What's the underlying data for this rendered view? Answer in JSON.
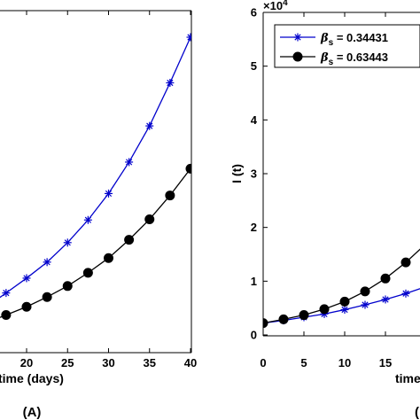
{
  "chart_data": [
    {
      "type": "line",
      "panel_label": "(A)",
      "xlabel": "time (days)",
      "xticks": [
        20,
        25,
        30,
        35,
        40
      ],
      "xlim": [
        15,
        40
      ],
      "ylim": [
        0,
        1
      ],
      "series": [
        {
          "color": "#0000cc",
          "marker": "asterisk",
          "x": [
            17.5,
            20,
            22.5,
            25,
            27.5,
            30,
            32.5,
            35,
            37.5,
            40
          ],
          "y": [
            0.187,
            0.234,
            0.285,
            0.347,
            0.419,
            0.503,
            0.603,
            0.718,
            0.855,
            1.0
          ]
        },
        {
          "color": "#000000",
          "marker": "circle",
          "x": [
            17.5,
            20,
            22.5,
            25,
            27.5,
            30,
            32.5,
            35,
            37.5,
            40
          ],
          "y": [
            0.117,
            0.143,
            0.174,
            0.209,
            0.251,
            0.298,
            0.356,
            0.421,
            0.497,
            0.582
          ]
        }
      ]
    },
    {
      "type": "line",
      "panel_label": "(B)",
      "xlabel": "time",
      "ylabel": "I (t)",
      "exponent_label": "×10",
      "exponent": "4",
      "xticks": [
        0,
        5,
        10,
        15
      ],
      "yticks": [
        0,
        1,
        2,
        3,
        4,
        5,
        6
      ],
      "xlim": [
        0,
        22
      ],
      "ylim": [
        0,
        6
      ],
      "legend_position": "top-left",
      "series": [
        {
          "name_symbol": "β",
          "name_sub": "s",
          "name_value": " = 0.34431",
          "color": "#0000cc",
          "marker": "asterisk",
          "x": [
            0,
            2.5,
            5,
            7.5,
            10,
            12.5,
            15,
            17.5,
            20
          ],
          "y": [
            0.22,
            0.27,
            0.33,
            0.39,
            0.47,
            0.56,
            0.66,
            0.77,
            0.9
          ]
        },
        {
          "name_symbol": "β",
          "name_sub": "s",
          "name_value": " = 0.63443",
          "color": "#000000",
          "marker": "circle",
          "x": [
            0,
            2.5,
            5,
            7.5,
            10,
            12.5,
            15,
            17.5,
            20
          ],
          "y": [
            0.22,
            0.29,
            0.37,
            0.48,
            0.62,
            0.81,
            1.05,
            1.35,
            1.7
          ]
        }
      ]
    }
  ]
}
